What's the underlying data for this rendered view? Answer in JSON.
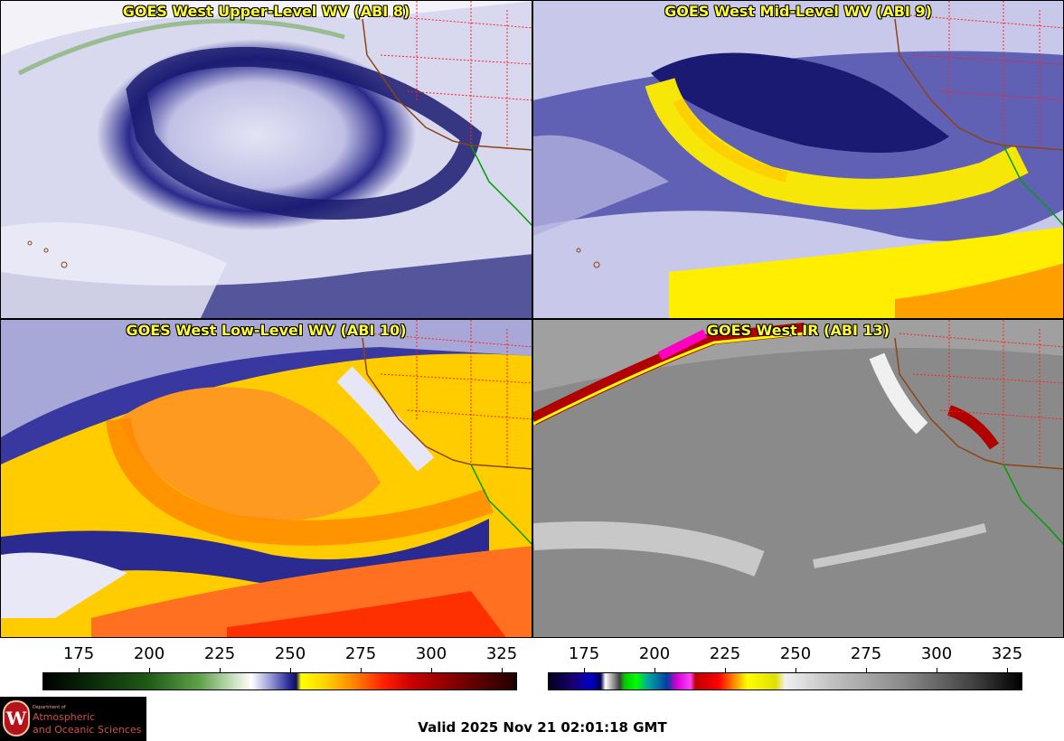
{
  "panels": [
    {
      "title": "GOES West Upper-Level WV (ABI 8)"
    },
    {
      "title": "GOES West Mid-Level WV (ABI 9)"
    },
    {
      "title": "GOES West Low-Level WV (ABI 10)"
    },
    {
      "title": "GOES West IR (ABI 13)"
    }
  ],
  "colorbars": [
    {
      "ticks": [
        "175",
        "200",
        "225",
        "250",
        "275",
        "300",
        "325"
      ]
    },
    {
      "ticks": [
        "175",
        "200",
        "225",
        "250",
        "275",
        "300",
        "325"
      ]
    }
  ],
  "logo": {
    "dept_line": "Department of",
    "line1": "Atmospheric",
    "line2": "and Oceanic Sciences",
    "seal_letter": "W"
  },
  "valid_time": "Valid 2025 Nov 21 02:01:18 GMT",
  "colors": {
    "title_text": "#ffff33",
    "state_borders": "#ff2020",
    "coastline_us": "#8b4513",
    "coastline_mexico": "#00a000"
  }
}
